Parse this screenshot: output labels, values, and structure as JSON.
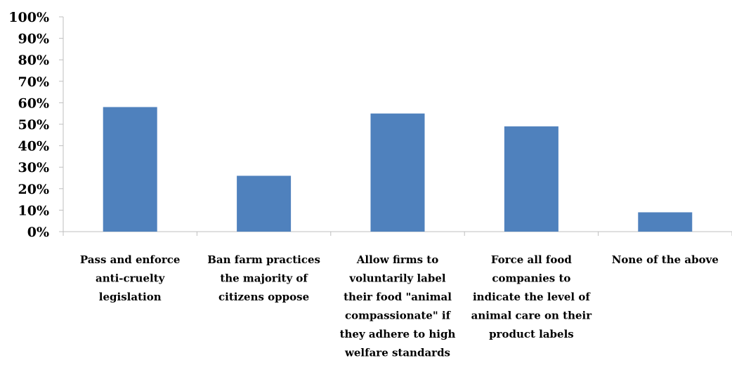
{
  "chart_data": {
    "type": "bar",
    "categories": [
      [
        "Pass and enforce",
        "anti-cruelty",
        "legislation"
      ],
      [
        "Ban farm practices",
        "the majority of",
        "citizens oppose"
      ],
      [
        "Allow firms to",
        "voluntarily label",
        "their food \"animal",
        "compassionate\" if",
        "they adhere to high",
        "welfare standards"
      ],
      [
        "Force all food",
        "companies to",
        "indicate the level of",
        "animal care on their",
        "product labels"
      ],
      [
        "None of the above"
      ]
    ],
    "values": [
      58,
      26,
      55,
      49,
      9
    ],
    "y_ticks": [
      "0%",
      "10%",
      "20%",
      "30%",
      "40%",
      "50%",
      "60%",
      "70%",
      "80%",
      "90%",
      "100%"
    ],
    "ylim": [
      0,
      100
    ],
    "grid": false,
    "bar_color": "#4F81BD",
    "axis_color": "#BFBFBF",
    "title": "",
    "xlabel": "",
    "ylabel": ""
  }
}
